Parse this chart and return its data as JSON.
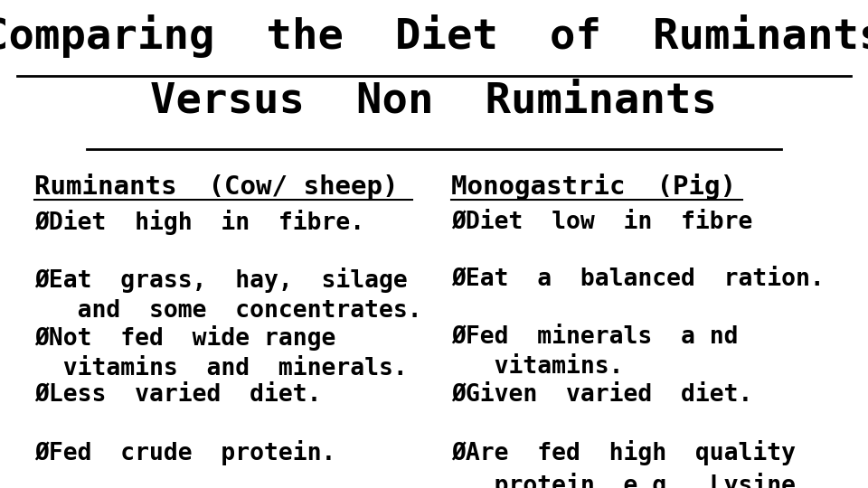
{
  "title_line1": "Comparing  the  Diet  of  Ruminants",
  "title_line2": "Versus  Non  Ruminants",
  "bg_color": "#ffffff",
  "text_color": "#000000",
  "title_fontsize": 34,
  "header_fontsize": 21,
  "body_fontsize": 19,
  "left_header": "Ruminants  (Cow/ sheep)",
  "right_header": "Monogastric  (Pig)",
  "left_items": [
    "ØDiet  high  in  fibre.",
    "ØEat  grass,  hay,  silage\n   and  some  concentrates.",
    "ØNot  fed  wide range\n  vitamins  and  minerals.",
    "ØLess  varied  diet.",
    "ØFed  crude  protein."
  ],
  "right_items": [
    "ØDiet  low  in  fibre",
    "ØEat  a  balanced  ration.",
    "ØFed  minerals  a nd\n   vitamins.",
    "ØGiven  varied  diet.",
    "ØAre  fed  high  quality\n   protein  e.g.  Lysine."
  ]
}
